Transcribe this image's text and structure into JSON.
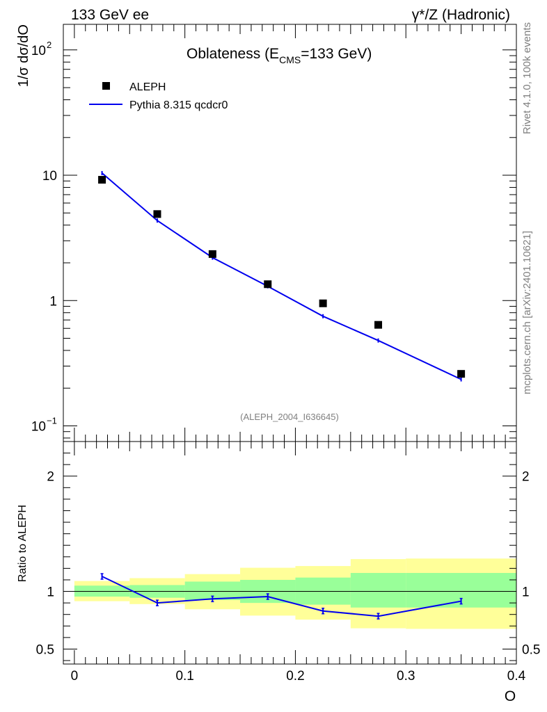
{
  "header": {
    "left": "133 GeV ee",
    "right": "γ*/Z (Hadronic)"
  },
  "side_text": {
    "rivet": "Rivet 4.1.0,  100k events",
    "mcplots": "mcplots.cern.ch [arXiv:2401.10621]"
  },
  "analysis_id": "(ALEPH_2004_I636645)",
  "chart_data": [
    {
      "type": "scatter",
      "title": "Oblateness (E",
      "title_sub": "CMS",
      "title_rest": "=133 GeV)",
      "ylabel": "1/σ  dσ/dO",
      "yscale": "log",
      "ylim": [
        0.075,
        160
      ],
      "xlim": [
        -0.01,
        0.4
      ],
      "y_ticks": [
        {
          "value": 0.1,
          "base": "10",
          "exp": "−1"
        },
        {
          "value": 1,
          "base": "1",
          "exp": ""
        },
        {
          "value": 10,
          "base": "10",
          "exp": ""
        },
        {
          "value": 100,
          "base": "10",
          "exp": "2"
        }
      ],
      "legend": [
        {
          "name": "ALEPH",
          "style": "marker"
        },
        {
          "name": "Pythia 8.315 qcdcr0",
          "style": "line",
          "color": "#0000ee"
        }
      ],
      "series": [
        {
          "name": "ALEPH",
          "x": [
            0.025,
            0.075,
            0.125,
            0.175,
            0.225,
            0.275,
            0.35
          ],
          "y": [
            9.2,
            4.9,
            2.35,
            1.35,
            0.95,
            0.64,
            0.26
          ]
        },
        {
          "name": "Pythia 8.315 qcdcr0",
          "x": [
            0.025,
            0.075,
            0.125,
            0.175,
            0.225,
            0.275,
            0.35
          ],
          "y": [
            10.4,
            4.35,
            2.2,
            1.3,
            0.75,
            0.48,
            0.235
          ],
          "color": "#0000ee"
        }
      ]
    },
    {
      "type": "line",
      "ylabel": "Ratio to ALEPH",
      "xlabel": "O",
      "ylim": [
        0.37,
        2.3
      ],
      "xlim": [
        -0.01,
        0.4
      ],
      "y_ticks": [
        0.5,
        1,
        2
      ],
      "x_ticks": [
        0,
        0.1,
        0.2,
        0.3,
        0.4
      ],
      "x_tick_labels": [
        "0",
        "0.1",
        "0.2",
        "0.3",
        "0.4"
      ],
      "bands": [
        {
          "x0": 0.0,
          "x1": 0.05,
          "yellow": [
            0.915,
            1.09
          ],
          "green": [
            0.955,
            1.05
          ]
        },
        {
          "x0": 0.05,
          "x1": 0.1,
          "yellow": [
            0.89,
            1.115
          ],
          "green": [
            0.945,
            1.055
          ]
        },
        {
          "x0": 0.1,
          "x1": 0.15,
          "yellow": [
            0.845,
            1.15
          ],
          "green": [
            0.925,
            1.085
          ]
        },
        {
          "x0": 0.15,
          "x1": 0.2,
          "yellow": [
            0.79,
            1.205
          ],
          "green": [
            0.9,
            1.1
          ]
        },
        {
          "x0": 0.2,
          "x1": 0.25,
          "yellow": [
            0.755,
            1.22
          ],
          "green": [
            0.885,
            1.12
          ]
        },
        {
          "x0": 0.25,
          "x1": 0.3,
          "yellow": [
            0.68,
            1.28
          ],
          "green": [
            0.86,
            1.16
          ]
        },
        {
          "x0": 0.3,
          "x1": 0.4,
          "yellow": [
            0.675,
            1.285
          ],
          "green": [
            0.86,
            1.16
          ]
        }
      ],
      "series": [
        {
          "name": "Pythia 8.315 qcdcr0 / ALEPH",
          "x": [
            0.025,
            0.075,
            0.125,
            0.175,
            0.225,
            0.275,
            0.35
          ],
          "y": [
            1.13,
            0.9,
            0.935,
            0.955,
            0.83,
            0.785,
            0.915
          ],
          "color": "#0000ee"
        }
      ]
    }
  ]
}
